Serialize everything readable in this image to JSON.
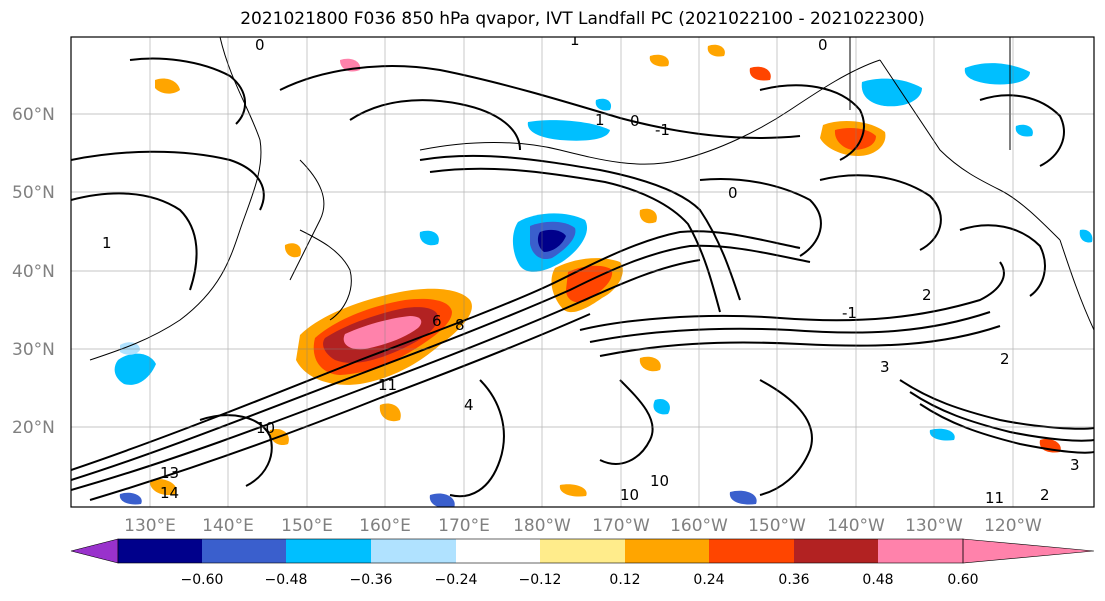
{
  "title": "2021021800 F036 850 hPa qvapor, IVT Landfall PC (2021022100 - 2021022300)",
  "latitude_labels": [
    "60°N",
    "50°N",
    "40°N",
    "30°N",
    "20°N"
  ],
  "longitude_labels": [
    "130°E",
    "140°E",
    "150°E",
    "160°E",
    "170°E",
    "180°W",
    "170°W",
    "160°W",
    "150°W",
    "140°W",
    "130°W",
    "120°W"
  ],
  "colorbar": {
    "tick_labels": [
      "−0.60",
      "−0.48",
      "−0.36",
      "−0.24",
      "−0.12",
      "0.12",
      "0.24",
      "0.36",
      "0.48",
      "0.60"
    ],
    "colors": [
      "#9932cc",
      "#00008b",
      "#3a5fcd",
      "#00bfff",
      "#b0e2ff",
      "#ffffff",
      "#ffec8b",
      "#ffa500",
      "#ff4500",
      "#b22222",
      "#ff82ab"
    ]
  },
  "contour_labels": [
    "0",
    "1",
    "1",
    "0",
    "-1",
    "1",
    "0",
    "0",
    "2",
    "6",
    "8",
    "4",
    "11",
    "10",
    "13",
    "14",
    "10",
    "10",
    "3",
    "2",
    "11",
    "-1",
    "2",
    "3"
  ]
}
